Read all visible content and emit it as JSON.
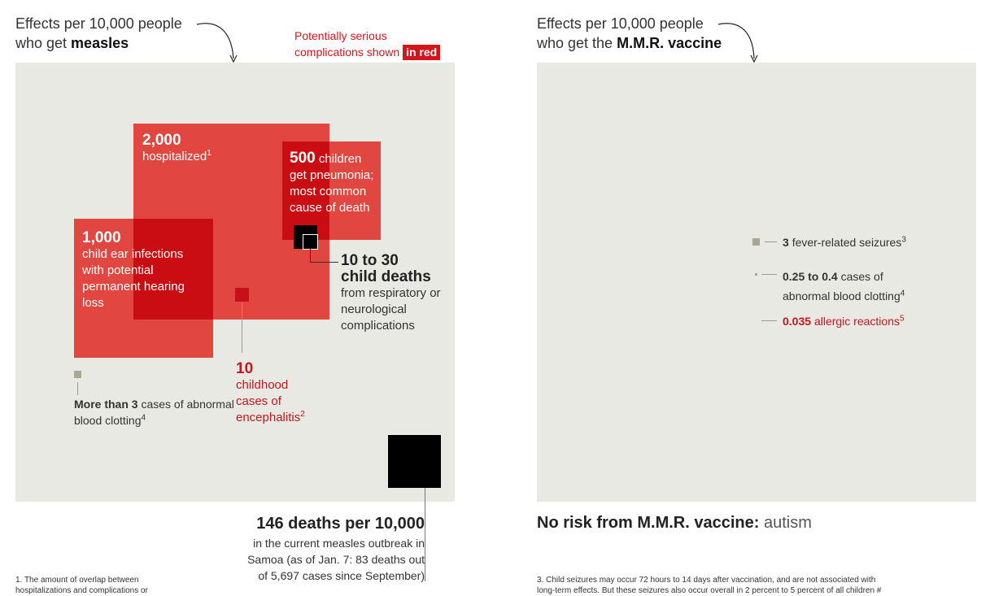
{
  "left": {
    "heading_line1": "Effects per 10,000 people",
    "heading_line2_prefix": "who get ",
    "heading_line2_bold": "measles",
    "legend_line1": "Potentially serious",
    "legend_line2": "complications shown",
    "legend_pill": "in red"
  },
  "right": {
    "heading_line1": "Effects per 10,000 people",
    "heading_line2_prefix": "who get the ",
    "heading_line2_bold": "M.M.R. vaccine",
    "no_risk_bold": "No risk from M.M.R. vaccine:",
    "no_risk_rest": "autism"
  },
  "chart_data": [
    {
      "type": "area",
      "title": "Effects per 10,000 people who get measles",
      "items": [
        {
          "value": 2000,
          "label_num": "2,000",
          "label": "hospitalized",
          "footnote": "1",
          "serious": true
        },
        {
          "value": 500,
          "label_num": "500",
          "label": "children get pneumonia; most common cause of death",
          "serious": true
        },
        {
          "value": 1000,
          "label_num": "1,000",
          "label": "child ear infections with potential permanent hearing loss",
          "serious": true
        },
        {
          "value": 10,
          "label_num": "10",
          "label": "childhood cases of encephalitis",
          "footnote": "2",
          "serious": true
        },
        {
          "value": [
            10,
            30
          ],
          "label_num": "10 to 30",
          "label_bold": "child deaths",
          "label": "from respiratory or neurological complications",
          "serious": false
        },
        {
          "value": 3,
          "label_num": "More than 3",
          "label": "cases of abnormal blood clotting",
          "footnote": "4",
          "serious": false
        },
        {
          "value": 146,
          "label_num": "146 deaths per 10,000",
          "label": "in the current measles outbreak in Samoa (as of Jan. 7: 83 deaths out of 5,697 cases since September)",
          "serious": false
        }
      ]
    },
    {
      "type": "area",
      "title": "Effects per 10,000 people who get the M.M.R. vaccine",
      "items": [
        {
          "value": 3,
          "label_num": "3",
          "label": "fever-related seizures",
          "footnote": "3",
          "serious": false
        },
        {
          "value": [
            0.25,
            0.4
          ],
          "label_num": "0.25 to 0.4",
          "label": "cases of",
          "label_line2": "abnormal blood clotting",
          "footnote": "4",
          "serious": false
        },
        {
          "value": 0.035,
          "label_num": "0.035",
          "label": "allergic reactions",
          "footnote": "5",
          "serious": true
        }
      ]
    }
  ],
  "footnotes": {
    "left_line1": "1. The amount of overlap between",
    "left_line2": "hospitalizations and complications or",
    "right_line1": "3. Child seizures may occur 72 hours to 14 days after vaccination, and are not associated with",
    "right_line2": "long-term effects. But these seizures also occur overall in 2 percent to 5 percent of all children #"
  },
  "colors": {
    "serious_red": "#e0403c",
    "label_red": "#c8141a",
    "panel_bg": "#e9e9e4",
    "neutral_square": "#a8a893",
    "death_square": "#000000"
  }
}
